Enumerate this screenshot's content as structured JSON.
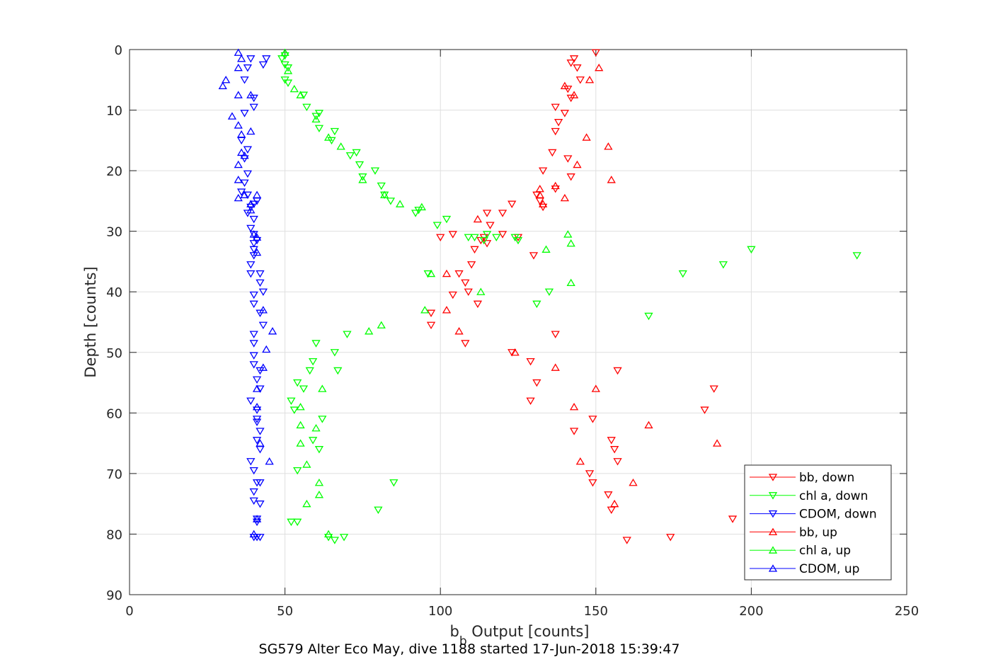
{
  "chart_data": {
    "type": "scatter",
    "xlabel_main": "b",
    "xlabel_sub": "b",
    "xlabel_rest": " Output [counts]",
    "ylabel": "Depth [counts]",
    "caption": "SG579 Alter Eco May, dive 1188 started 17-Jun-2018 15:39:47",
    "xlim": [
      0,
      250
    ],
    "ylim": [
      90,
      0
    ],
    "xticks": [
      0,
      50,
      100,
      150,
      200,
      250
    ],
    "yticks": [
      0,
      10,
      20,
      30,
      40,
      50,
      60,
      70,
      80,
      90
    ],
    "grid": true,
    "legend_position": "bottom-right",
    "series": [
      {
        "name": "bb, down",
        "color": "#ff0000",
        "marker": "triangle-down",
        "points": [
          [
            150,
            0.5
          ],
          [
            143,
            1.5
          ],
          [
            142,
            2.2
          ],
          [
            144,
            3
          ],
          [
            145,
            5
          ],
          [
            141,
            6.5
          ],
          [
            142,
            8
          ],
          [
            137,
            9.5
          ],
          [
            140,
            10.5
          ],
          [
            138,
            12
          ],
          [
            137,
            13.5
          ],
          [
            136,
            17
          ],
          [
            141,
            18
          ],
          [
            142,
            21
          ],
          [
            133,
            20
          ],
          [
            137,
            23
          ],
          [
            132,
            25
          ],
          [
            131,
            24
          ],
          [
            133,
            26
          ],
          [
            123,
            25.5
          ],
          [
            120,
            27
          ],
          [
            115,
            27
          ],
          [
            116,
            29
          ],
          [
            114,
            31
          ],
          [
            115,
            32
          ],
          [
            113,
            31.5
          ],
          [
            104,
            30.5
          ],
          [
            100,
            31
          ],
          [
            111,
            33
          ],
          [
            110,
            35.5
          ],
          [
            106,
            37
          ],
          [
            108,
            38.5
          ],
          [
            109,
            40
          ],
          [
            104,
            40.5
          ],
          [
            112,
            42
          ],
          [
            97,
            43.5
          ],
          [
            97,
            45.5
          ],
          [
            120,
            30.5
          ],
          [
            125,
            31
          ],
          [
            130,
            34
          ],
          [
            137,
            47
          ],
          [
            108,
            48.5
          ],
          [
            123,
            50
          ],
          [
            129,
            51.5
          ],
          [
            131,
            55
          ],
          [
            129,
            58
          ],
          [
            157,
            53
          ],
          [
            188,
            56
          ],
          [
            185,
            59.5
          ],
          [
            143,
            63
          ],
          [
            149,
            61
          ],
          [
            155,
            64.5
          ],
          [
            156,
            66
          ],
          [
            157,
            68
          ],
          [
            148,
            70
          ],
          [
            149,
            71.5
          ],
          [
            154,
            73.5
          ],
          [
            155,
            76
          ],
          [
            160,
            81
          ],
          [
            174,
            80.5
          ],
          [
            194,
            77.5
          ]
        ]
      },
      {
        "name": "chl a, down",
        "color": "#00ff00",
        "marker": "triangle-down",
        "points": [
          [
            50,
            1
          ],
          [
            49,
            1.5
          ],
          [
            50,
            2.5
          ],
          [
            51,
            3
          ],
          [
            50,
            5
          ],
          [
            51,
            5.5
          ],
          [
            56,
            7.5
          ],
          [
            57,
            9.5
          ],
          [
            61,
            10.5
          ],
          [
            60,
            11
          ],
          [
            61,
            13
          ],
          [
            66,
            13.5
          ],
          [
            65,
            15
          ],
          [
            71,
            17.5
          ],
          [
            73,
            17
          ],
          [
            74,
            19
          ],
          [
            75,
            21
          ],
          [
            79,
            20
          ],
          [
            81,
            22.5
          ],
          [
            82,
            24
          ],
          [
            84,
            25
          ],
          [
            92,
            27
          ],
          [
            93,
            26.5
          ],
          [
            99,
            29
          ],
          [
            102,
            28
          ],
          [
            109,
            31
          ],
          [
            111,
            31
          ],
          [
            114,
            31.5
          ],
          [
            115,
            30.5
          ],
          [
            118,
            31
          ],
          [
            124,
            31
          ],
          [
            125,
            31.5
          ],
          [
            200,
            33
          ],
          [
            234,
            34
          ],
          [
            191,
            35.5
          ],
          [
            178,
            37
          ],
          [
            96,
            37
          ],
          [
            131,
            42
          ],
          [
            135,
            40
          ],
          [
            167,
            44
          ],
          [
            70,
            47
          ],
          [
            60,
            48.5
          ],
          [
            66,
            50
          ],
          [
            59,
            51.5
          ],
          [
            58,
            53
          ],
          [
            67,
            53
          ],
          [
            54,
            55
          ],
          [
            56,
            56
          ],
          [
            52,
            58
          ],
          [
            53,
            59.5
          ],
          [
            62,
            61
          ],
          [
            61,
            66
          ],
          [
            59,
            64.5
          ],
          [
            54,
            69.5
          ],
          [
            85,
            71.5
          ],
          [
            80,
            76
          ],
          [
            52,
            78
          ],
          [
            54,
            78
          ],
          [
            64,
            80.5
          ],
          [
            66,
            81
          ],
          [
            69,
            80.5
          ]
        ]
      },
      {
        "name": "CDOM, down",
        "color": "#0000ff",
        "marker": "triangle-down",
        "points": [
          [
            44,
            1.5
          ],
          [
            39,
            1.5
          ],
          [
            43,
            2.5
          ],
          [
            38,
            3
          ],
          [
            37,
            5
          ],
          [
            40,
            8
          ],
          [
            40,
            9.5
          ],
          [
            37,
            10.5
          ],
          [
            36,
            15
          ],
          [
            38,
            16.5
          ],
          [
            37,
            18
          ],
          [
            38,
            20.5
          ],
          [
            37,
            22
          ],
          [
            36,
            23.5
          ],
          [
            38,
            24
          ],
          [
            41,
            25
          ],
          [
            40,
            25.5
          ],
          [
            39,
            26
          ],
          [
            38,
            27
          ],
          [
            40,
            28
          ],
          [
            39,
            29.5
          ],
          [
            40,
            30.5
          ],
          [
            41,
            31.5
          ],
          [
            40,
            32
          ],
          [
            40,
            33
          ],
          [
            40,
            34
          ],
          [
            39,
            35.5
          ],
          [
            39,
            37
          ],
          [
            42,
            37
          ],
          [
            42,
            38.5
          ],
          [
            40,
            40.5
          ],
          [
            43,
            40
          ],
          [
            40,
            42
          ],
          [
            42,
            43.5
          ],
          [
            43,
            45.5
          ],
          [
            40,
            47
          ],
          [
            40,
            48.5
          ],
          [
            40,
            50.5
          ],
          [
            40,
            52
          ],
          [
            42,
            53
          ],
          [
            41,
            54.5
          ],
          [
            42,
            56
          ],
          [
            39,
            58
          ],
          [
            41,
            59.5
          ],
          [
            41,
            61
          ],
          [
            41,
            61.5
          ],
          [
            42,
            63
          ],
          [
            41,
            64.5
          ],
          [
            42,
            66
          ],
          [
            39,
            68
          ],
          [
            40,
            69.5
          ],
          [
            41,
            71.5
          ],
          [
            42,
            71.5
          ],
          [
            40,
            73
          ],
          [
            40,
            74.5
          ],
          [
            42,
            75
          ],
          [
            41,
            77.5
          ],
          [
            41,
            78
          ],
          [
            40,
            80.5
          ],
          [
            41,
            80.5
          ],
          [
            42,
            80.5
          ]
        ]
      },
      {
        "name": "bb, up",
        "color": "#ff0000",
        "marker": "triangle-up",
        "points": [
          [
            151,
            3
          ],
          [
            148,
            5
          ],
          [
            143,
            7.5
          ],
          [
            140,
            6
          ],
          [
            147,
            14.5
          ],
          [
            154,
            16
          ],
          [
            144,
            19
          ],
          [
            155,
            21.5
          ],
          [
            132,
            23
          ],
          [
            137,
            22.5
          ],
          [
            132,
            24
          ],
          [
            140,
            24.5
          ],
          [
            133,
            25.5
          ],
          [
            112,
            28
          ],
          [
            102,
            37
          ],
          [
            102,
            43
          ],
          [
            106,
            46.5
          ],
          [
            124,
            50
          ],
          [
            137,
            52.5
          ],
          [
            150,
            56
          ],
          [
            143,
            59
          ],
          [
            167,
            62
          ],
          [
            189,
            65
          ],
          [
            145,
            68
          ],
          [
            162,
            71.5
          ],
          [
            156,
            75
          ]
        ]
      },
      {
        "name": "chl a, up",
        "color": "#00ff00",
        "marker": "triangle-up",
        "points": [
          [
            50,
            0.5
          ],
          [
            51,
            3.5
          ],
          [
            53,
            6.5
          ],
          [
            55,
            7.5
          ],
          [
            60,
            11.5
          ],
          [
            64,
            14.5
          ],
          [
            68,
            16
          ],
          [
            75,
            21.5
          ],
          [
            82,
            24
          ],
          [
            87,
            25.5
          ],
          [
            94,
            26
          ],
          [
            141,
            30.5
          ],
          [
            142,
            32
          ],
          [
            134,
            33
          ],
          [
            142,
            38.5
          ],
          [
            97,
            37
          ],
          [
            113,
            40
          ],
          [
            95,
            43
          ],
          [
            81,
            45.5
          ],
          [
            77,
            46.5
          ],
          [
            62,
            56
          ],
          [
            55,
            59
          ],
          [
            55,
            62
          ],
          [
            60,
            62.5
          ],
          [
            55,
            65
          ],
          [
            57,
            68.5
          ],
          [
            61,
            71.5
          ],
          [
            61,
            73.5
          ],
          [
            57,
            75
          ],
          [
            64,
            80
          ]
        ]
      },
      {
        "name": "CDOM, up",
        "color": "#0000ff",
        "marker": "triangle-up",
        "points": [
          [
            35,
            0.5
          ],
          [
            36,
            1.5
          ],
          [
            35,
            3
          ],
          [
            31,
            5
          ],
          [
            30,
            6
          ],
          [
            35,
            7.5
          ],
          [
            39,
            7.5
          ],
          [
            33,
            11
          ],
          [
            35,
            12.5
          ],
          [
            39,
            13.5
          ],
          [
            36,
            14
          ],
          [
            36,
            17
          ],
          [
            37,
            17.5
          ],
          [
            35,
            19
          ],
          [
            35,
            21.5
          ],
          [
            35,
            24.5
          ],
          [
            37,
            24
          ],
          [
            41,
            24
          ],
          [
            39,
            25.5
          ],
          [
            39,
            26.5
          ],
          [
            40,
            30.5
          ],
          [
            41,
            31
          ],
          [
            41,
            33.5
          ],
          [
            43,
            43
          ],
          [
            46,
            46.5
          ],
          [
            44,
            49.5
          ],
          [
            43,
            52.5
          ],
          [
            41,
            56
          ],
          [
            41,
            59
          ],
          [
            42,
            65
          ],
          [
            45,
            68
          ],
          [
            41,
            77.5
          ],
          [
            40,
            80
          ]
        ]
      }
    ]
  }
}
